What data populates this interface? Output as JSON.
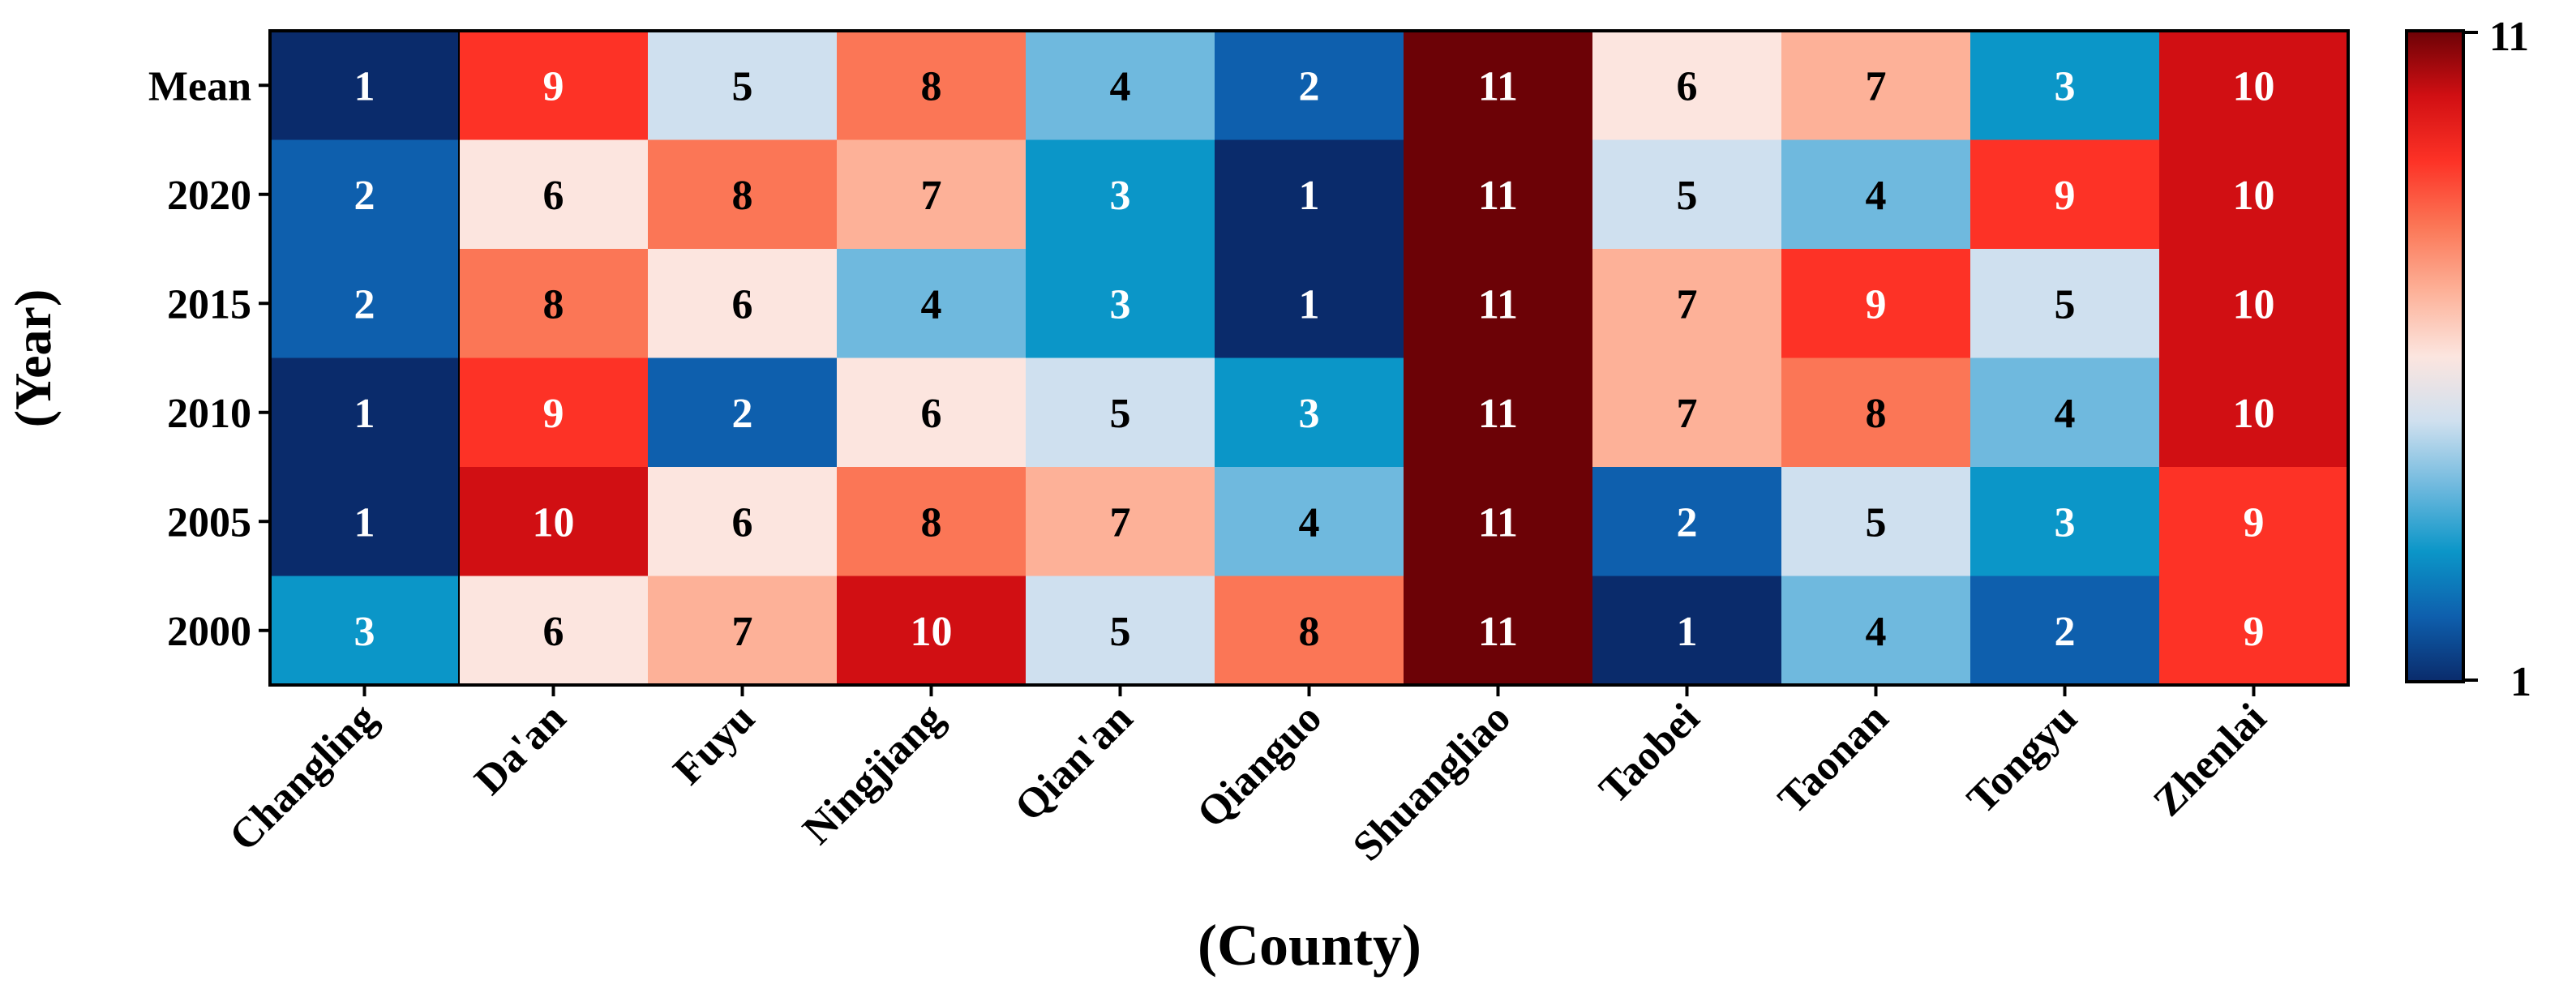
{
  "chart_data": {
    "type": "heatmap",
    "xlabel": "(County)",
    "ylabel": "(Year)",
    "x_categories": [
      "Changling",
      "Da'an",
      "Fuyu",
      "Ningjiang",
      "Qian'an",
      "Qianguo",
      "Shuangliao",
      "Taobei",
      "Taonan",
      "Tongyu",
      "Zhenlai"
    ],
    "y_categories": [
      "Mean",
      "2020",
      "2015",
      "2010",
      "2005",
      "2000"
    ],
    "values": [
      [
        1,
        9,
        5,
        8,
        4,
        2,
        11,
        6,
        7,
        3,
        10
      ],
      [
        2,
        6,
        8,
        7,
        3,
        1,
        11,
        5,
        4,
        9,
        10
      ],
      [
        2,
        8,
        6,
        4,
        3,
        1,
        11,
        7,
        9,
        5,
        10
      ],
      [
        1,
        9,
        2,
        6,
        5,
        3,
        11,
        7,
        8,
        4,
        10
      ],
      [
        1,
        10,
        6,
        8,
        7,
        4,
        11,
        2,
        5,
        3,
        9
      ],
      [
        3,
        6,
        7,
        10,
        5,
        8,
        11,
        1,
        4,
        2,
        9
      ]
    ],
    "colorbar": {
      "min": 1,
      "max": 11,
      "min_label": "1",
      "max_label": "11",
      "scale": [
        "#0a2b6b",
        "#0e5fad",
        "#0b96c8",
        "#6fb9de",
        "#cfe0ef",
        "#fce5df",
        "#fdb198",
        "#fb7656",
        "#fd3226",
        "#d10f13",
        "#6c0206"
      ]
    },
    "colors": {
      "text_dark": "#000000",
      "text_light": "#ffffff",
      "grid_line": "#000000"
    }
  }
}
